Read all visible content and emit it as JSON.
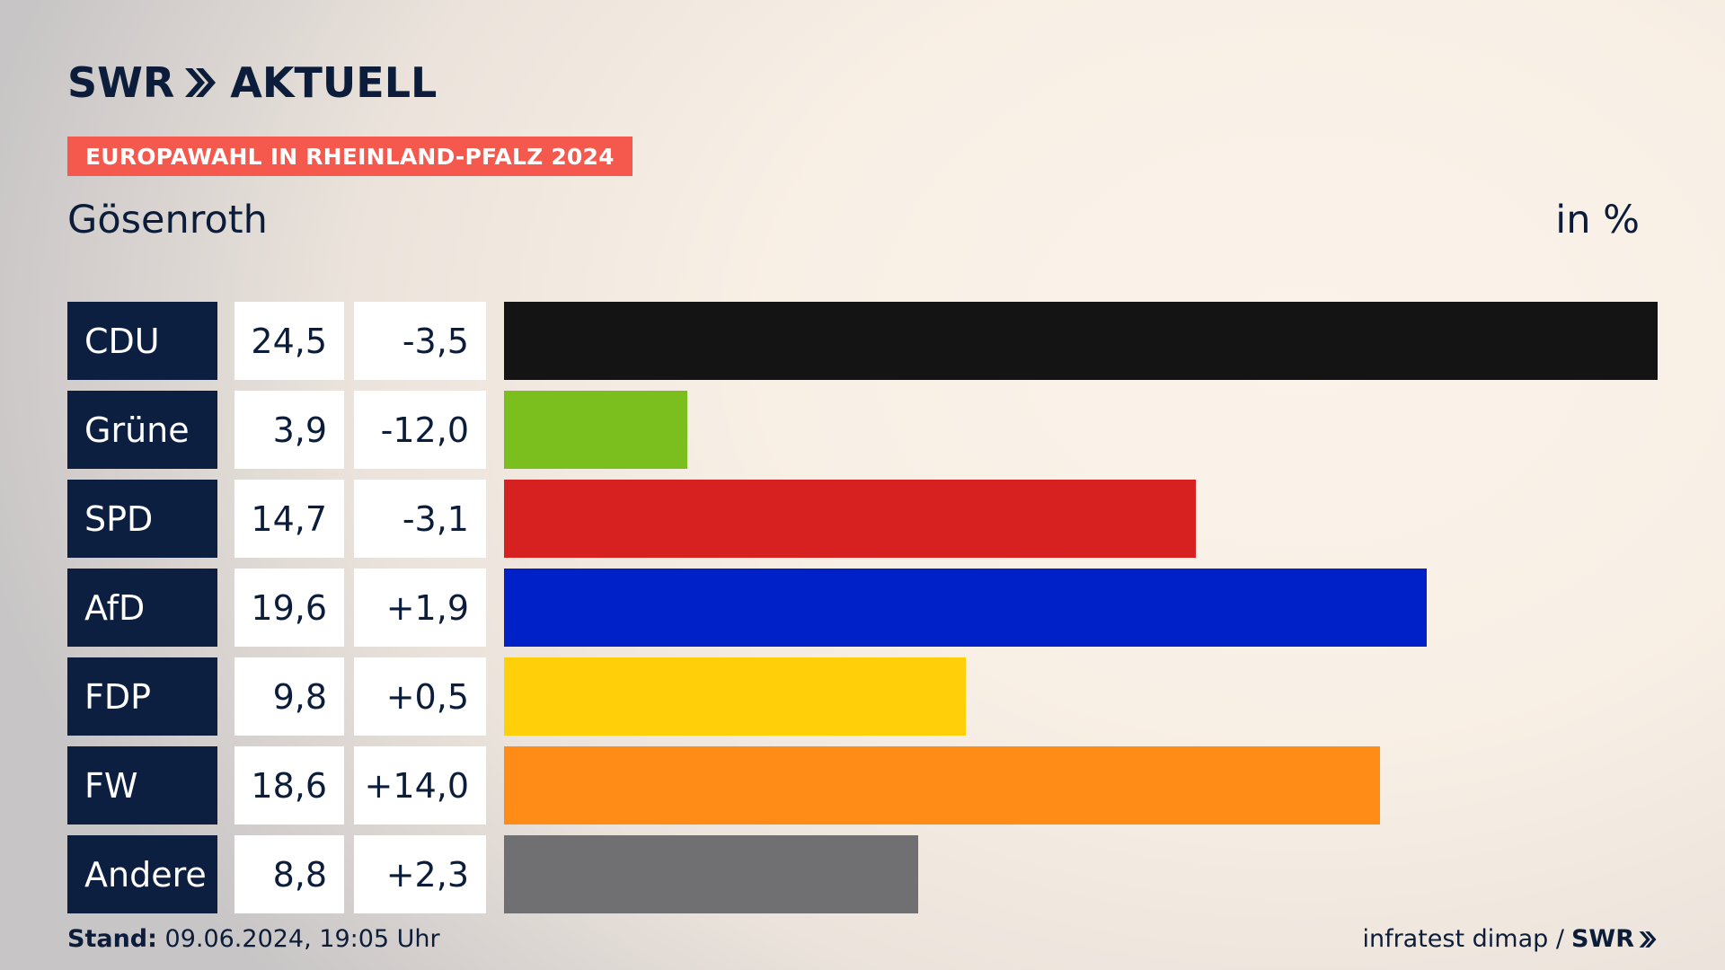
{
  "logo": {
    "text": "SWR",
    "text2": "AKTUELL"
  },
  "tag": "EUROPAWAHL IN RHEINLAND-PFALZ 2024",
  "place": "Gösenroth",
  "unit": "in %",
  "footer": {
    "stand_label": "Stand:",
    "stand_value": "09.06.2024, 19:05 Uhr",
    "source": "infratest dimap /",
    "brand": "SWR"
  },
  "chart_data": {
    "type": "bar",
    "orientation": "horizontal",
    "categories": [
      "CDU",
      "Grüne",
      "SPD",
      "AfD",
      "FDP",
      "FW",
      "Andere"
    ],
    "values": [
      24.5,
      3.9,
      14.7,
      19.6,
      9.8,
      18.6,
      8.8
    ],
    "value_labels": [
      "24,5",
      "3,9",
      "14,7",
      "19,6",
      "9,8",
      "18,6",
      "8,8"
    ],
    "changes": [
      "-3,5",
      "-12,0",
      "-3,1",
      "+1,9",
      "+0,5",
      "+14,0",
      "+2,3"
    ],
    "colors": [
      "#141414",
      "#7abf1e",
      "#d72020",
      "#0021c8",
      "#ffcf0a",
      "#ff8c16",
      "#707072"
    ],
    "xlim": [
      0,
      24.5
    ]
  }
}
